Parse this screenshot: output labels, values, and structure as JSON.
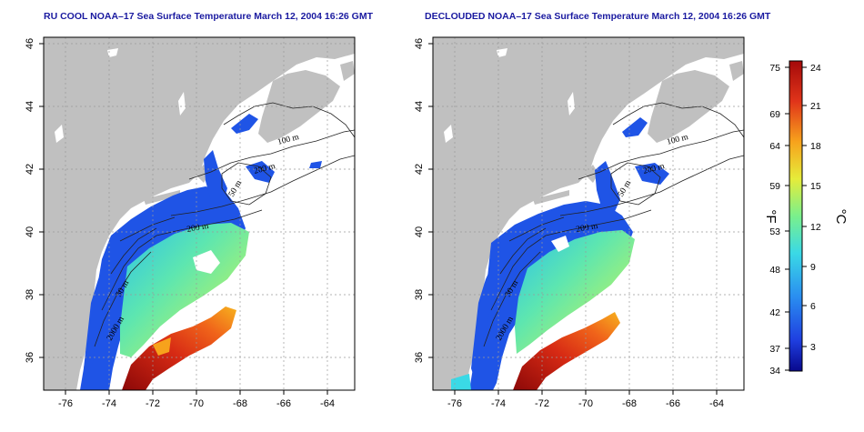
{
  "maps": [
    {
      "id": "left",
      "title": "RU COOL NOAA–17 Sea Surface Temperature March 12, 2004 16:26 GMT",
      "contour_labels": [
        "100 m",
        "200 m",
        "50 m",
        "200 m",
        "50 m",
        "2000 m"
      ]
    },
    {
      "id": "right",
      "title": "DECLOUDED NOAA–17 Sea Surface Temperature March 12, 2004 16:26 GMT",
      "contour_labels": [
        "100 m",
        "200 m",
        "50 m",
        "200 m",
        "50 m",
        "2000 m"
      ]
    }
  ],
  "x_ticks": [
    "-76",
    "-74",
    "-72",
    "-70",
    "-68",
    "-66",
    "-64"
  ],
  "y_ticks": [
    "36",
    "38",
    "40",
    "42",
    "44",
    "46"
  ],
  "colorbar": {
    "fahrenheit_ticks": [
      "75",
      "69",
      "64",
      "59",
      "53",
      "48",
      "42",
      "37",
      "34"
    ],
    "celsius_ticks": [
      "24",
      "21",
      "18",
      "15",
      "12",
      "9",
      "6",
      "3"
    ],
    "fahrenheit_label": "°F",
    "celsius_label": "°C",
    "range_c": [
      1,
      24.5
    ],
    "colors": [
      "#08088c",
      "#1f3fe0",
      "#2a8ef0",
      "#3ad9e6",
      "#7af08c",
      "#e6ec3a",
      "#f7a21c",
      "#e0341a",
      "#a50a0a"
    ]
  },
  "colors": {
    "land": "#c0c0c0",
    "title": "#1a1aa0",
    "grid": "#9a9a9a"
  }
}
